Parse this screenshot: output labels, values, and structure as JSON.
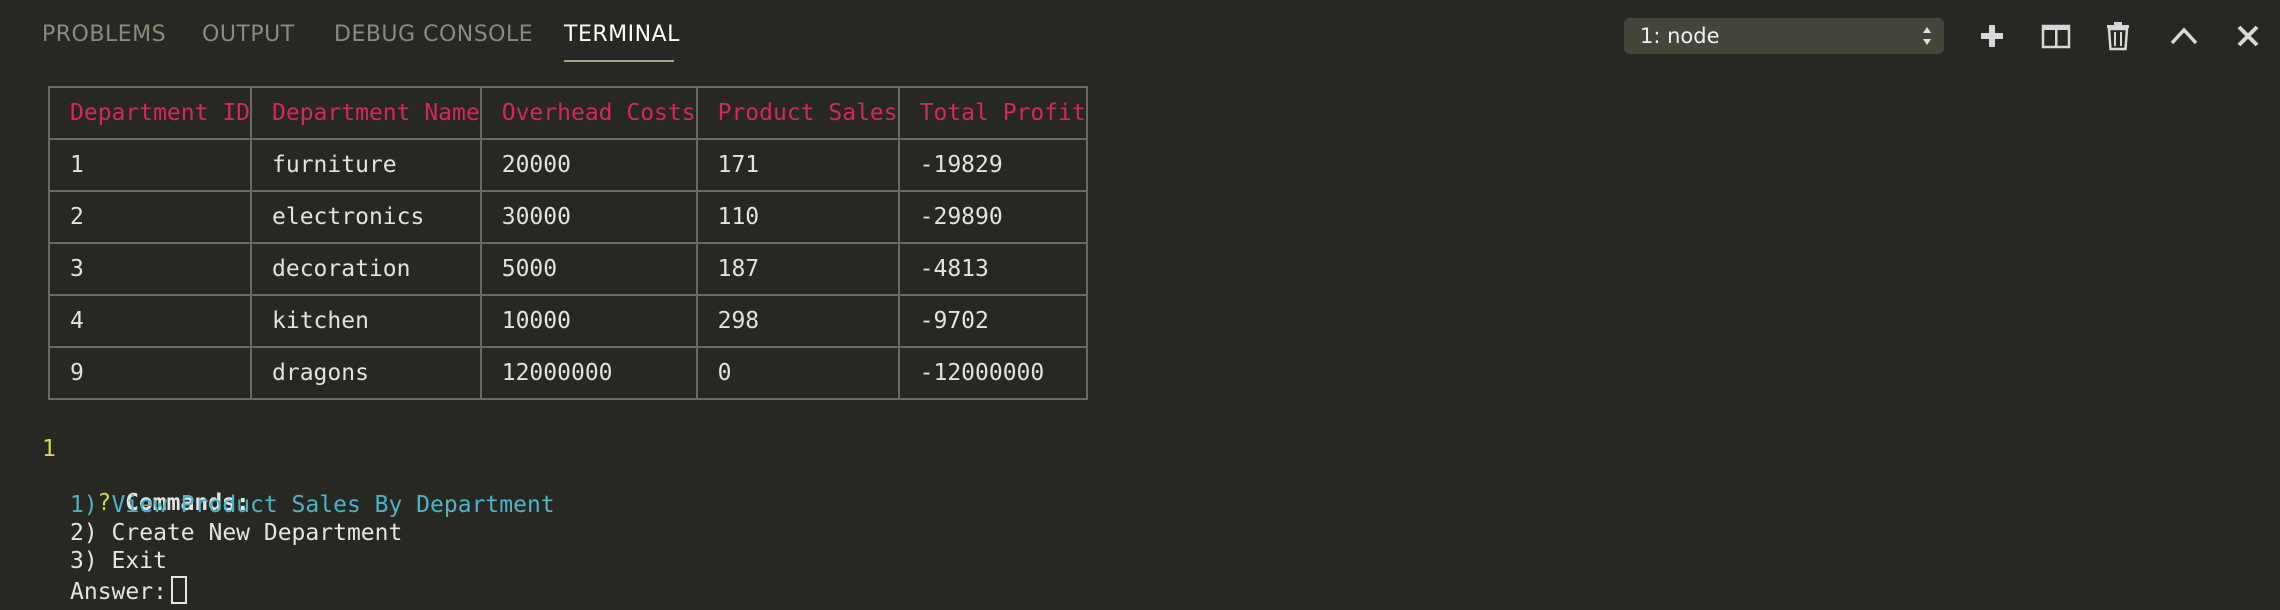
{
  "tabs": [
    {
      "label": "PROBLEMS"
    },
    {
      "label": "OUTPUT"
    },
    {
      "label": "DEBUG CONSOLE"
    },
    {
      "label": "TERMINAL"
    }
  ],
  "active_tab": "TERMINAL",
  "terminal_select": {
    "value": "1: node"
  },
  "actions": {
    "new_terminal": "plus-icon",
    "split_terminal": "split-icon",
    "kill_terminal": "trash-icon",
    "maximize_panel": "chevron-up-icon",
    "close_panel": "close-icon"
  },
  "table": {
    "headers": [
      "Department ID",
      "Department Name",
      "Overhead Costs",
      "Product Sales",
      "Total Profit"
    ],
    "rows": [
      [
        "1",
        "furniture",
        "20000",
        "171",
        "-19829"
      ],
      [
        "2",
        "electronics",
        "30000",
        "110",
        "-29890"
      ],
      [
        "3",
        "decoration",
        "5000",
        "187",
        "-4813"
      ],
      [
        "4",
        "kitchen",
        "10000",
        "298",
        "-9702"
      ],
      [
        "9",
        "dragons",
        "12000000",
        "0",
        "-12000000"
      ]
    ]
  },
  "prompt": {
    "echo": "1",
    "question_mark": "?",
    "label": "Commands:",
    "options": [
      "1) View Product Sales By Department",
      "2) Create New Department",
      "3) Exit"
    ],
    "answer_label": "Answer:"
  },
  "colors": {
    "background": "#272822",
    "header_red": "#d6285c",
    "selected_cyan": "#4cb3c8",
    "prompt_yellow": "#d8d84a"
  }
}
